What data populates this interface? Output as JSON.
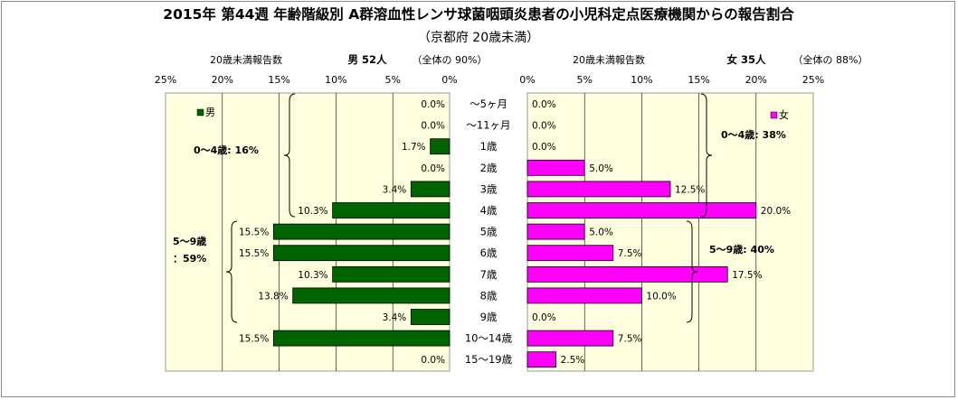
{
  "title": "2015年 第44週 年齢階級別 A群溶血性レンサ球菌咽頭炎患者の小児科定点医療機関からの報告割合",
  "subtitle": "（京都府 20歳未満）",
  "male_panel": {
    "axis_caption": "20歳未満報告数",
    "header": "男 52人",
    "header_note": "（全体の 90%）",
    "legend": "男",
    "color": "#006400",
    "ticks": [
      "25%",
      "20%",
      "15%",
      "10%",
      "5%",
      "0%"
    ],
    "groups": [
      {
        "label": "0～4歳: 16%"
      },
      {
        "label_line1": "5～9歳",
        "label_line2": "：59%"
      }
    ]
  },
  "female_panel": {
    "axis_caption": "20歳未満報告数",
    "header": "女 35人",
    "header_note": "（全体の 88%）",
    "legend": "女",
    "color": "#ff00ff",
    "ticks": [
      "0%",
      "5%",
      "10%",
      "15%",
      "20%",
      "25%"
    ],
    "groups": [
      {
        "label": "0～4歳: 38%"
      },
      {
        "label": "5～9歳: 40%"
      }
    ]
  },
  "chart_data": {
    "type": "bar",
    "orientation": "horizontal-pyramid",
    "title": "2015年 第44週 年齢階級別 A群溶血性レンサ球菌咽頭炎患者の小児科定点医療機関からの報告割合",
    "subtitle": "（京都府 20歳未満）",
    "xlim": [
      0,
      25
    ],
    "grid": true,
    "categories": [
      "～5ヶ月",
      "～11ヶ月",
      "1歳",
      "2歳",
      "3歳",
      "4歳",
      "5歳",
      "6歳",
      "7歳",
      "8歳",
      "9歳",
      "10～14歳",
      "15～19歳"
    ],
    "series": [
      {
        "name": "男",
        "values": [
          0.0,
          0.0,
          1.7,
          0.0,
          3.4,
          10.3,
          15.5,
          15.5,
          10.3,
          13.8,
          3.4,
          15.5,
          0.0
        ],
        "labels": [
          "0.0%",
          "0.0%",
          "1.7%",
          "0.0%",
          "3.4%",
          "10.3%",
          "15.5%",
          "15.5%",
          "10.3%",
          "13.8%",
          "3.4%",
          "15.5%",
          "0.0%"
        ]
      },
      {
        "name": "女",
        "values": [
          0.0,
          0.0,
          0.0,
          5.0,
          12.5,
          20.0,
          5.0,
          7.5,
          17.5,
          10.0,
          0.0,
          7.5,
          2.5
        ],
        "labels": [
          "0.0%",
          "0.0%",
          "0.0%",
          "5.0%",
          "12.5%",
          "20.0%",
          "5.0%",
          "7.5%",
          "17.5%",
          "10.0%",
          "0.0%",
          "7.5%",
          "2.5%"
        ]
      }
    ]
  }
}
